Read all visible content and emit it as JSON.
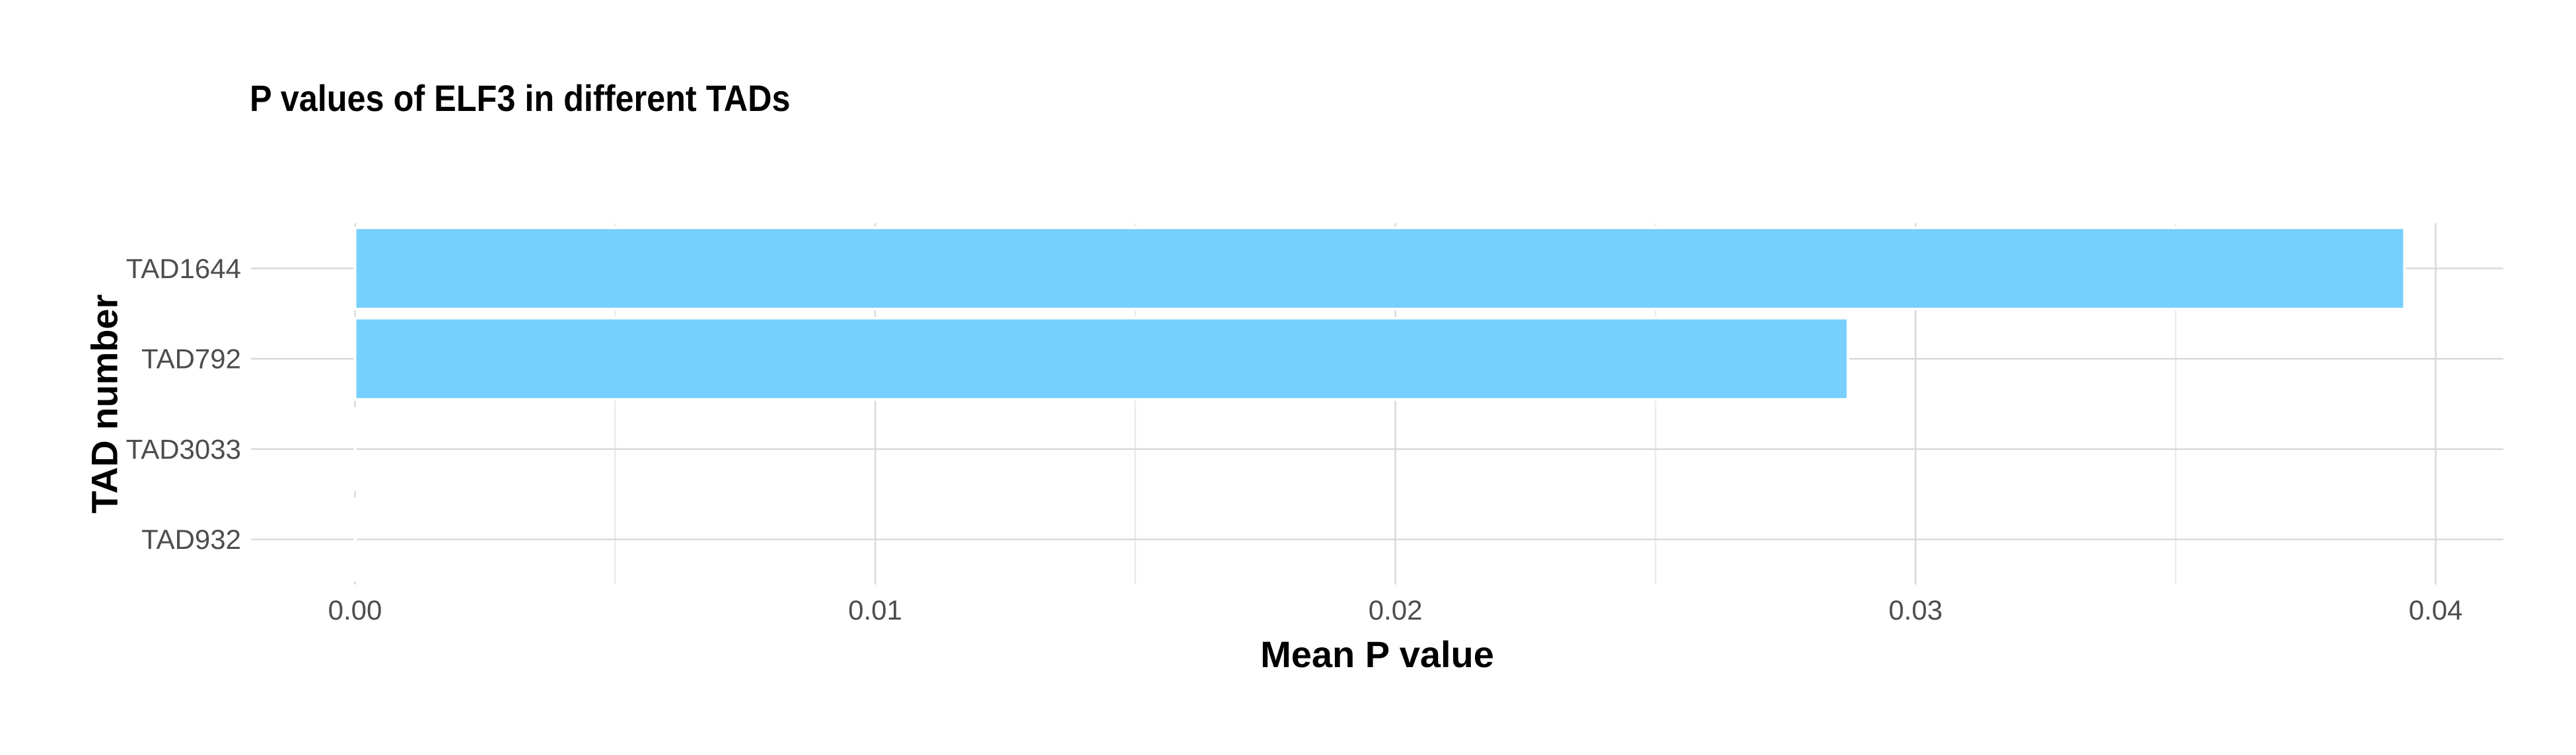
{
  "chart_data": {
    "type": "bar",
    "orientation": "horizontal",
    "title": "P values of ELF3 in different TADs",
    "xlabel": "Mean P value",
    "ylabel": "TAD number",
    "categories": [
      "TAD1644",
      "TAD792",
      "TAD3033",
      "TAD932"
    ],
    "values": [
      0.0394,
      0.0287,
      0.0,
      0.0
    ],
    "xlim": [
      -0.002,
      0.0413
    ],
    "x_ticks": [
      0.0,
      0.01,
      0.02,
      0.03,
      0.04
    ],
    "x_tick_labels": [
      "0.00",
      "0.01",
      "0.02",
      "0.03",
      "0.04"
    ],
    "x_minor_ticks": [
      0.005,
      0.015,
      0.025,
      0.035
    ],
    "grid": true,
    "legend": "none",
    "bar_color": "#76CFFD",
    "bar_outline_color": "#ffffff",
    "grid_major_color": "#d9d9d9",
    "grid_minor_color": "#ebebeb"
  }
}
